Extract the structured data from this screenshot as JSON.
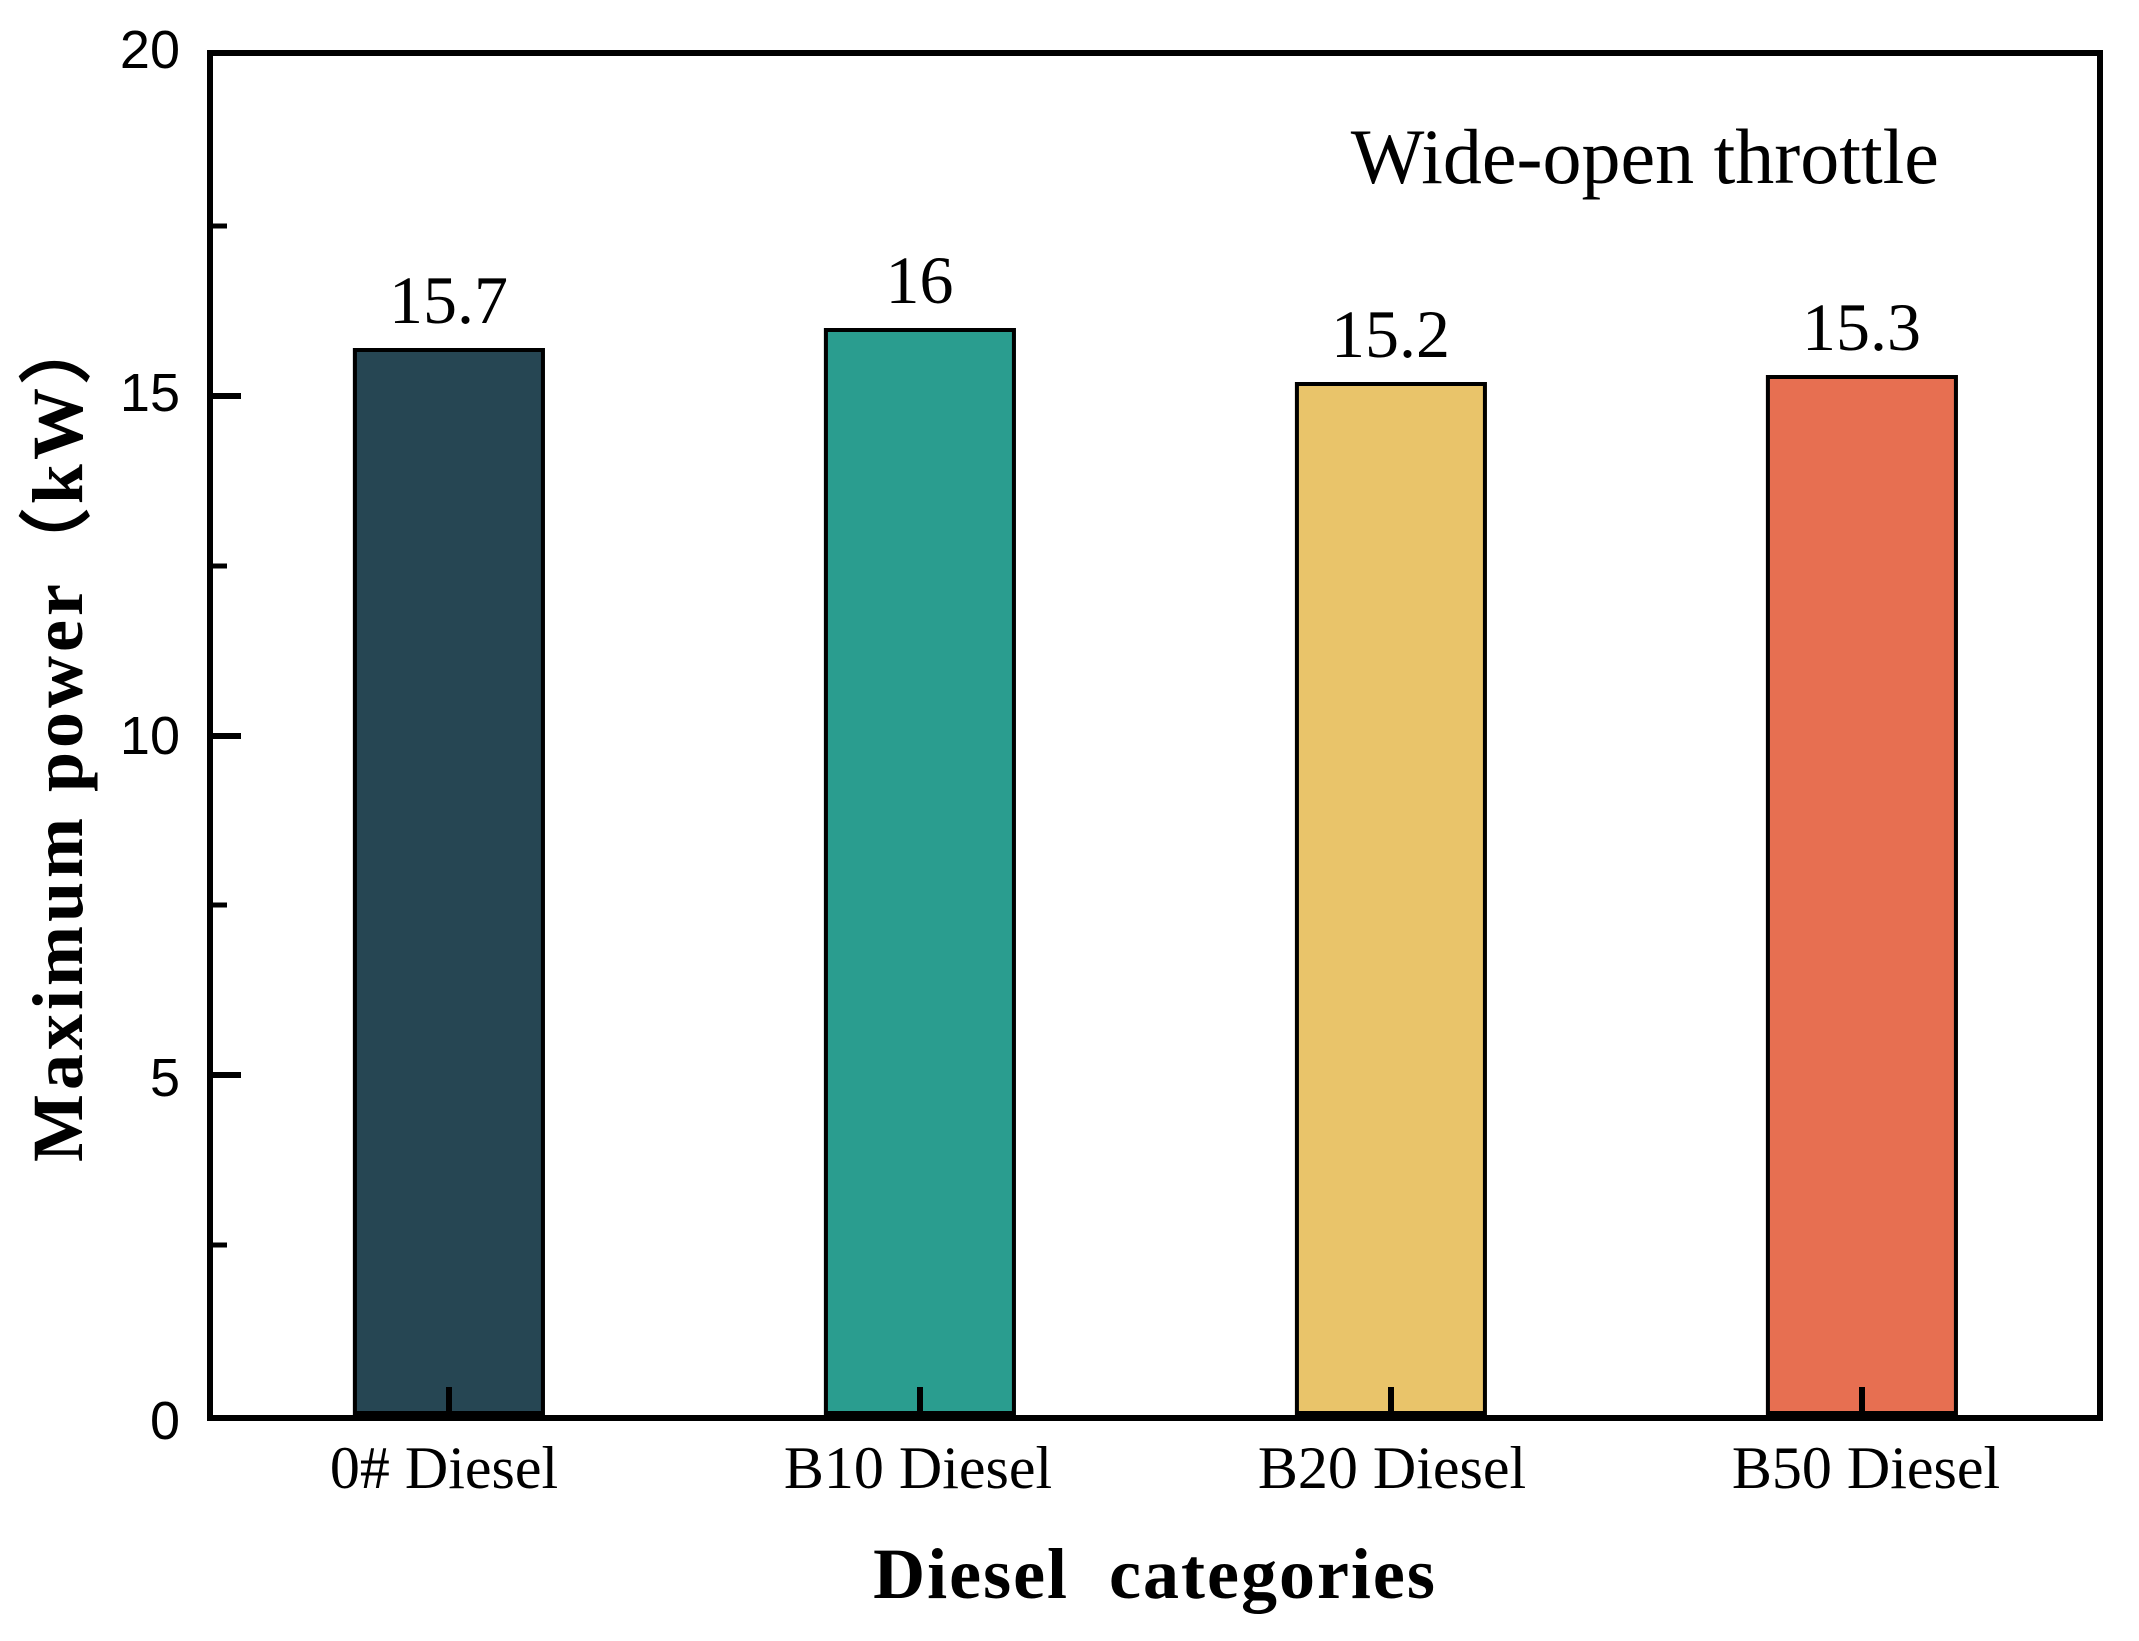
{
  "figure": {
    "background": "#ffffff",
    "frame_color": "#000000",
    "text_color": "#000000"
  },
  "chart_data": {
    "type": "bar",
    "title": "",
    "annotation": "Wide-open throttle",
    "xlabel": "Diesel  categories",
    "ylabel": "Maximum power（kW）",
    "categories": [
      "0# Diesel",
      "B10 Diesel",
      "B20 Diesel",
      "B50 Diesel"
    ],
    "values": [
      15.7,
      16,
      15.2,
      15.3
    ],
    "value_labels": [
      "15.7",
      "16",
      "15.2",
      "15.3"
    ],
    "bar_colors": [
      "#264653",
      "#2a9d8f",
      "#e9c46a",
      "#e76f51"
    ],
    "bar_edge_color": "#000000",
    "ylim": [
      0,
      20
    ],
    "y_major_ticks": [
      0,
      5,
      10,
      15,
      20
    ],
    "y_major_tick_labels": [
      "0",
      "5",
      "10",
      "15",
      "20"
    ],
    "y_minor_ticks": [
      2.5,
      7.5,
      12.5,
      17.5
    ],
    "grid": false,
    "legend": null,
    "tick_direction": "in"
  }
}
